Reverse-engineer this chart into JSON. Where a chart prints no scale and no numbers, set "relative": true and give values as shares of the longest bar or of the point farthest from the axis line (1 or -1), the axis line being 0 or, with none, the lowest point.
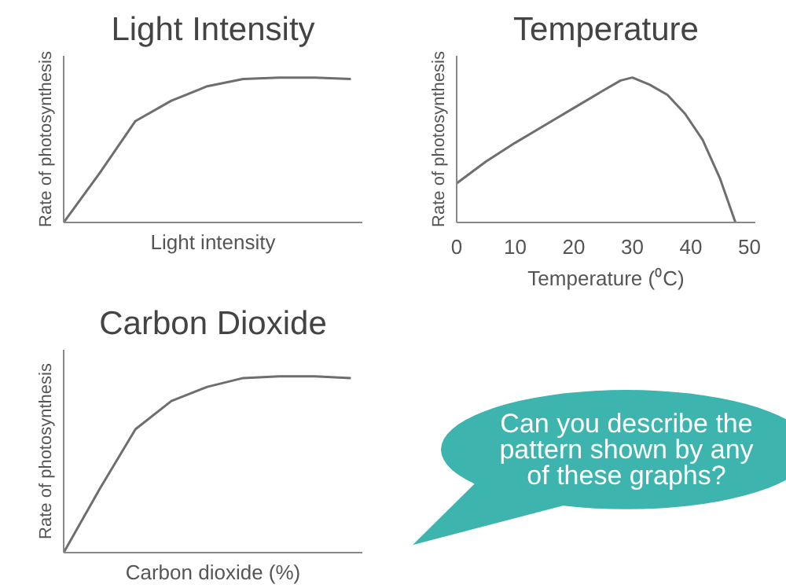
{
  "chart_data": [
    {
      "type": "line",
      "title": "Light Intensity",
      "xlabel": "Light intensity",
      "ylabel": "Rate of photosynthesis",
      "relative": true,
      "tick_labels": false,
      "categories": [
        null,
        null,
        null,
        null,
        null,
        null,
        null,
        null,
        null
      ],
      "series": [
        {
          "color": "#6e6e6e",
          "values": [
            0,
            0.34,
            0.7,
            0.84,
            0.94,
            0.99,
            1.0,
            1.0,
            0.99
          ]
        }
      ]
    },
    {
      "type": "line",
      "title": "Temperature",
      "xlabel": "Temperature (⁰C)",
      "ylabel": "Rate of photosynthesis",
      "relative": true,
      "tick_labels": "x",
      "xlim": [
        0,
        51
      ],
      "xticks": [
        0,
        10,
        20,
        30,
        40,
        50
      ],
      "series": [
        {
          "color": "#6e6e6e",
          "x": [
            0,
            5,
            10,
            15,
            20,
            25,
            28,
            30,
            33,
            36,
            39,
            42,
            45,
            47.6
          ],
          "values": [
            0.27,
            0.42,
            0.55,
            0.67,
            0.79,
            0.91,
            0.98,
            1.0,
            0.95,
            0.88,
            0.75,
            0.57,
            0.3,
            0
          ]
        }
      ]
    },
    {
      "type": "line",
      "title": "Carbon Dioxide",
      "xlabel": "Carbon dioxide (%)",
      "ylabel": "Rate of photosynthesis",
      "relative": true,
      "tick_labels": false,
      "categories": [
        null,
        null,
        null,
        null,
        null,
        null,
        null,
        null,
        null
      ],
      "series": [
        {
          "color": "#6e6e6e",
          "values": [
            0,
            0.36,
            0.7,
            0.86,
            0.94,
            0.99,
            1.0,
            1.0,
            0.99
          ]
        }
      ]
    },
    {
      "type": "other",
      "annotations": [
        "Can you describe the pattern shown by any of these graphs?"
      ]
    }
  ]
}
